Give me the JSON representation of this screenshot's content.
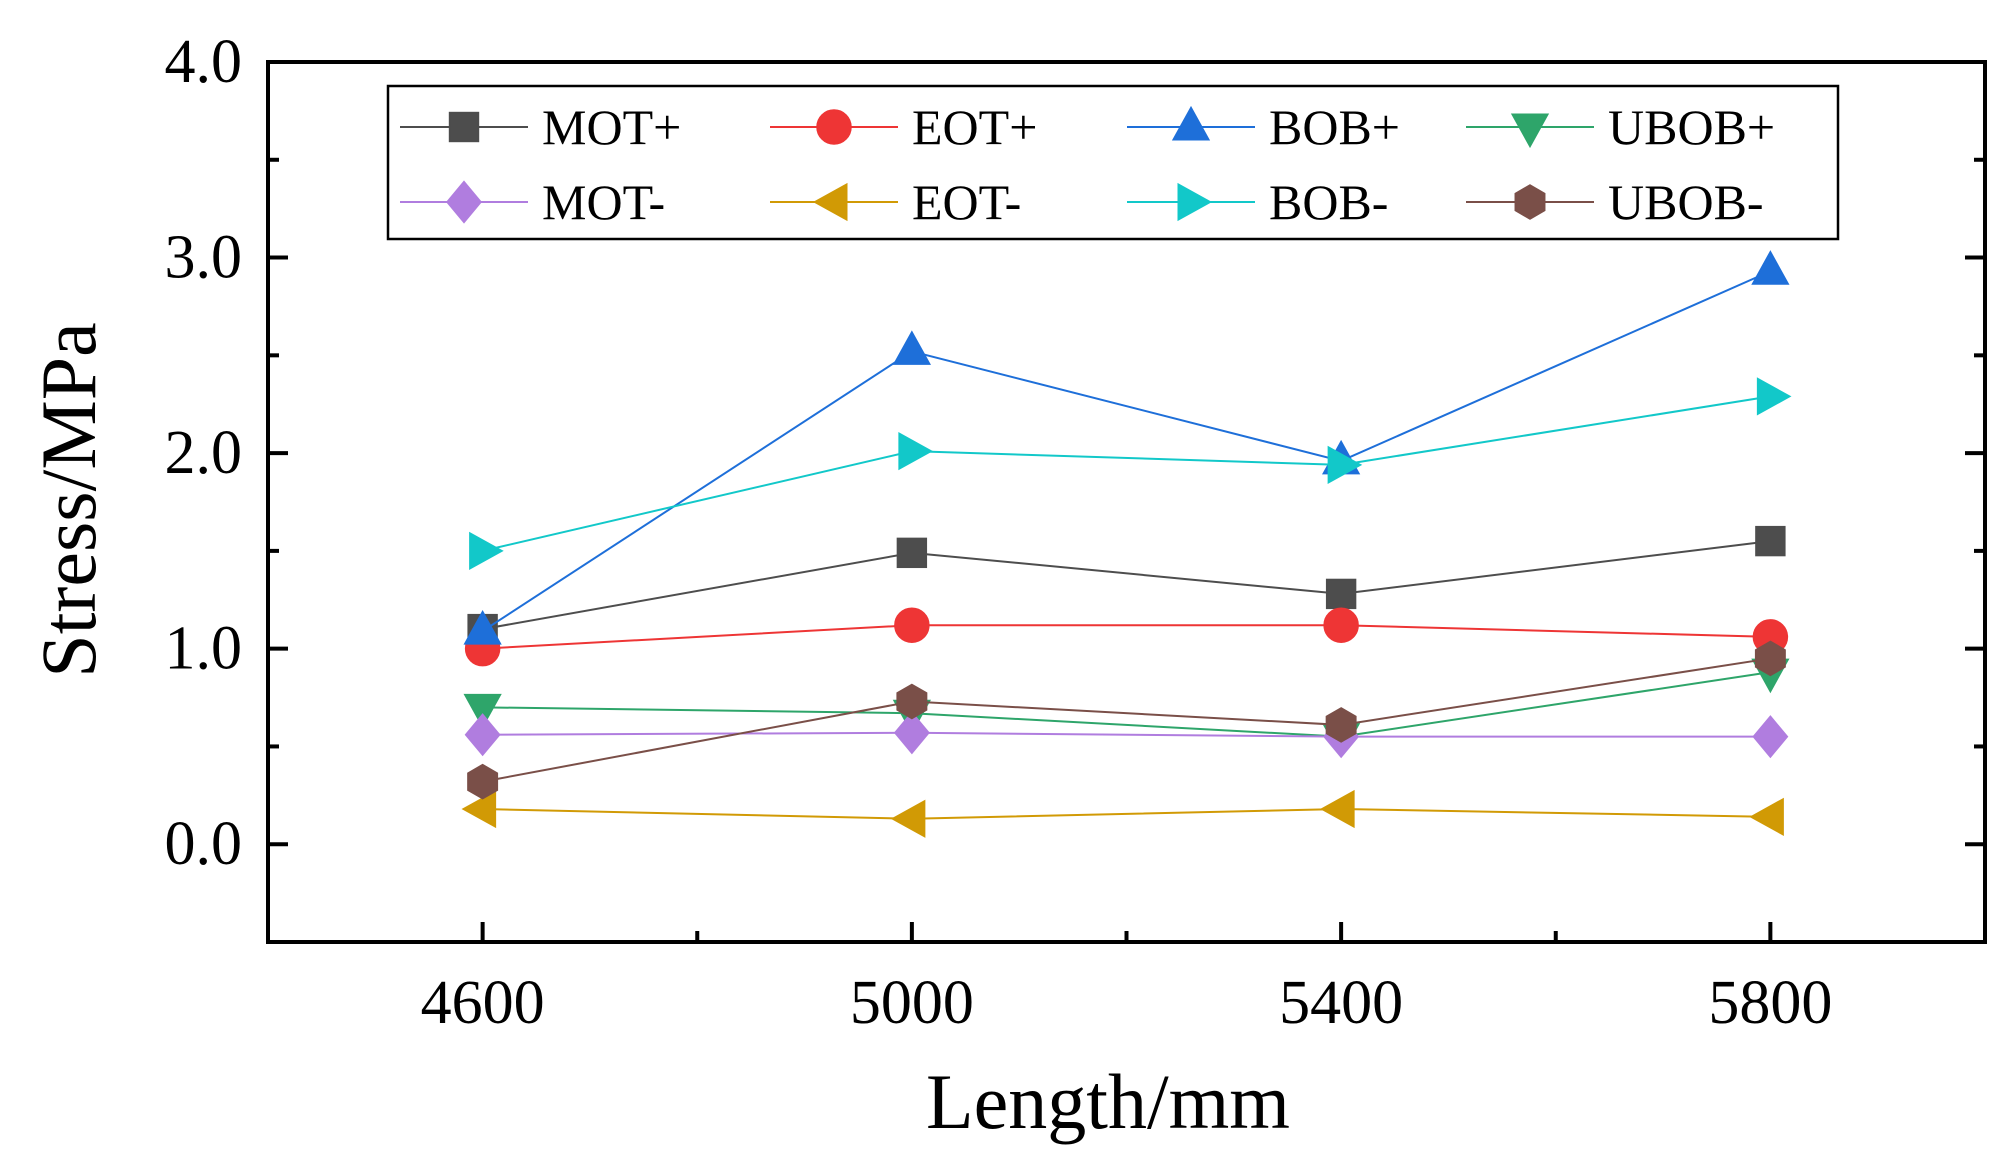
{
  "chart_data": {
    "type": "line",
    "title": "",
    "xlabel": "Length/mm",
    "ylabel": "Stress/MPa",
    "x": [
      4600,
      5000,
      5400,
      5800
    ],
    "x_ticks": [
      "4600",
      "5000",
      "5400",
      "5800"
    ],
    "xlim": [
      4400,
      6000
    ],
    "y_ticks": [
      "0.0",
      "1.0",
      "2.0",
      "3.0",
      "4.0"
    ],
    "ylim": [
      -0.5,
      4.0
    ],
    "grid": false,
    "legend_position": "top",
    "series": [
      {
        "name": "MOT+",
        "color": "#4d4d4d",
        "marker": "square",
        "values": [
          1.1,
          1.49,
          1.28,
          1.55
        ]
      },
      {
        "name": "EOT+",
        "color": "#ee3535",
        "marker": "circle",
        "values": [
          1.0,
          1.12,
          1.12,
          1.06
        ]
      },
      {
        "name": "BOB+",
        "color": "#1e6fd9",
        "marker": "triangle-up",
        "values": [
          1.09,
          2.52,
          1.96,
          2.93
        ]
      },
      {
        "name": "UBOB+",
        "color": "#2ea56a",
        "marker": "triangle-down",
        "values": [
          0.7,
          0.67,
          0.55,
          0.88
        ]
      },
      {
        "name": "MOT-",
        "color": "#b07ddf",
        "marker": "diamond",
        "values": [
          0.56,
          0.57,
          0.55,
          0.55
        ]
      },
      {
        "name": "EOT-",
        "color": "#d19a05",
        "marker": "triangle-left",
        "values": [
          0.18,
          0.13,
          0.18,
          0.14
        ]
      },
      {
        "name": "BOB-",
        "color": "#12c8c9",
        "marker": "triangle-right",
        "values": [
          1.5,
          2.01,
          1.94,
          2.29
        ]
      },
      {
        "name": "UBOB-",
        "color": "#7a4f48",
        "marker": "hexagon",
        "values": [
          0.32,
          0.73,
          0.61,
          0.95
        ]
      }
    ]
  }
}
